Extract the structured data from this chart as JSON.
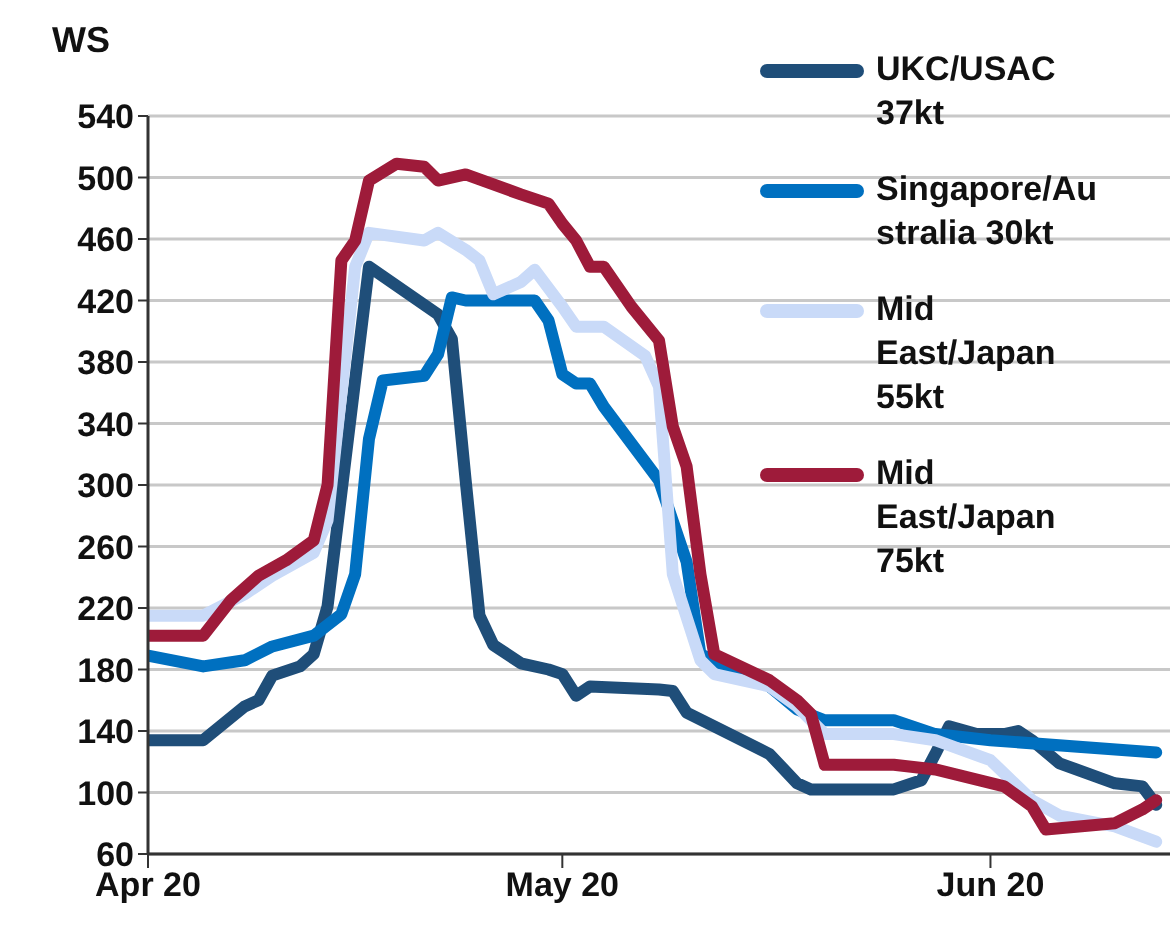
{
  "chart_data": {
    "type": "line",
    "ylabel": "WS",
    "xlim": [
      "2020-04-01",
      "2020-06-14"
    ],
    "xticks": [
      {
        "value": "2020-04-01",
        "label": "Apr 20"
      },
      {
        "value": "2020-05-01",
        "label": "May 20"
      },
      {
        "value": "2020-06-01",
        "label": "Jun 20"
      }
    ],
    "ylim": [
      60,
      540
    ],
    "yticks": [
      60,
      100,
      140,
      180,
      220,
      260,
      300,
      340,
      380,
      420,
      460,
      500,
      540
    ],
    "grid": "y",
    "legend": "top right",
    "marker": "none",
    "line_style": "solid",
    "series": [
      {
        "name": "UKC/USAC 37kt",
        "color": "#1f4e79",
        "x": [
          "2020-04-01",
          "2020-04-05",
          "2020-04-08",
          "2020-04-09",
          "2020-04-10",
          "2020-04-12",
          "2020-04-13",
          "2020-04-14",
          "2020-04-17",
          "2020-04-22",
          "2020-04-23",
          "2020-04-24",
          "2020-04-25",
          "2020-04-26",
          "2020-04-28",
          "2020-04-30",
          "2020-05-01",
          "2020-05-02",
          "2020-05-03",
          "2020-05-08",
          "2020-05-09",
          "2020-05-10",
          "2020-05-12",
          "2020-05-16",
          "2020-05-18",
          "2020-05-19",
          "2020-05-25",
          "2020-05-27",
          "2020-05-28",
          "2020-05-29",
          "2020-05-31",
          "2020-06-02",
          "2020-06-03",
          "2020-06-04",
          "2020-06-06",
          "2020-06-10",
          "2020-06-12",
          "2020-06-13"
        ],
        "values": [
          134,
          134,
          156,
          160,
          176,
          182,
          190,
          221,
          442,
          411,
          395,
          303,
          215,
          196,
          184,
          180,
          177,
          163,
          169,
          167,
          166,
          152,
          143,
          125,
          106,
          102,
          102,
          108,
          125,
          143,
          138,
          138,
          140,
          134,
          119,
          106,
          104,
          92
        ]
      },
      {
        "name": "Singapore/Australia 30kt",
        "color": "#0070c0",
        "x": [
          "2020-04-01",
          "2020-04-05",
          "2020-04-08",
          "2020-04-10",
          "2020-04-13",
          "2020-04-15",
          "2020-04-16",
          "2020-04-17",
          "2020-04-18",
          "2020-04-21",
          "2020-04-22",
          "2020-04-23",
          "2020-04-24",
          "2020-04-29",
          "2020-04-30",
          "2020-05-01",
          "2020-05-02",
          "2020-05-03",
          "2020-05-04",
          "2020-05-07",
          "2020-05-08",
          "2020-05-10",
          "2020-05-11",
          "2020-05-16",
          "2020-05-18",
          "2020-05-20",
          "2020-05-25",
          "2020-05-28",
          "2020-06-01",
          "2020-06-13"
        ],
        "values": [
          189,
          182,
          186,
          195,
          202,
          216,
          242,
          330,
          368,
          371,
          385,
          422,
          420,
          420,
          407,
          372,
          366,
          366,
          351,
          315,
          303,
          250,
          190,
          169,
          154,
          147,
          147,
          138,
          134,
          126
        ]
      },
      {
        "name": "Mid East/Japan 55kt",
        "color": "#c9daf8",
        "x": [
          "2020-04-01",
          "2020-04-05",
          "2020-04-08",
          "2020-04-10",
          "2020-04-13",
          "2020-04-14",
          "2020-04-16",
          "2020-04-17",
          "2020-04-21",
          "2020-04-22",
          "2020-04-24",
          "2020-04-25",
          "2020-04-26",
          "2020-04-28",
          "2020-04-29",
          "2020-05-01",
          "2020-05-02",
          "2020-05-04",
          "2020-05-07",
          "2020-05-08",
          "2020-05-09",
          "2020-05-11",
          "2020-05-12",
          "2020-05-16",
          "2020-05-18",
          "2020-05-20",
          "2020-05-25",
          "2020-05-28",
          "2020-06-01",
          "2020-06-04",
          "2020-06-06",
          "2020-06-10",
          "2020-06-13"
        ],
        "values": [
          215,
          215,
          229,
          241,
          256,
          277,
          442,
          464,
          459,
          464,
          453,
          446,
          424,
          432,
          440,
          416,
          403,
          403,
          384,
          364,
          242,
          186,
          177,
          169,
          156,
          138,
          138,
          134,
          121,
          95,
          85,
          78,
          68
        ]
      },
      {
        "name": "Mid East/Japan 75kt",
        "color": "#9e1b3a",
        "x": [
          "2020-04-01",
          "2020-04-05",
          "2020-04-07",
          "2020-04-09",
          "2020-04-11",
          "2020-04-13",
          "2020-04-14",
          "2020-04-15",
          "2020-04-16",
          "2020-04-17",
          "2020-04-19",
          "2020-04-21",
          "2020-04-22",
          "2020-04-24",
          "2020-04-28",
          "2020-04-30",
          "2020-05-01",
          "2020-05-02",
          "2020-05-03",
          "2020-05-04",
          "2020-05-06",
          "2020-05-08",
          "2020-05-09",
          "2020-05-10",
          "2020-05-11",
          "2020-05-12",
          "2020-05-16",
          "2020-05-18",
          "2020-05-19",
          "2020-05-20",
          "2020-05-25",
          "2020-05-28",
          "2020-06-02",
          "2020-06-04",
          "2020-06-05",
          "2020-06-10",
          "2020-06-12",
          "2020-06-13"
        ],
        "values": [
          202,
          202,
          225,
          241,
          251,
          264,
          300,
          446,
          459,
          498,
          509,
          507,
          498,
          502,
          489,
          483,
          470,
          459,
          442,
          442,
          416,
          394,
          338,
          312,
          242,
          190,
          173,
          160,
          151,
          118,
          118,
          115,
          104,
          91,
          76,
          80,
          89,
          95
        ]
      }
    ]
  }
}
